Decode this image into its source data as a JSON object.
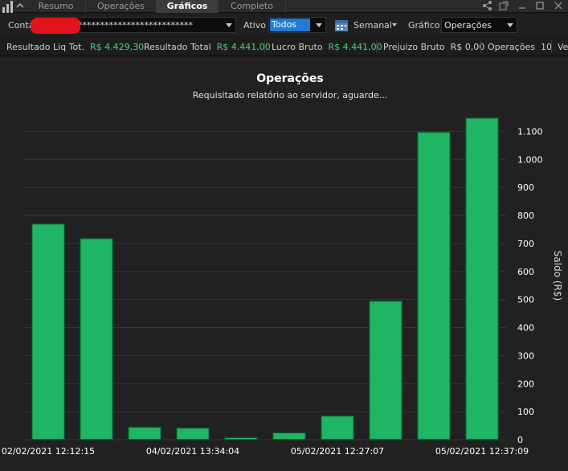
{
  "tabs": [
    {
      "label": "Resumo",
      "active": false
    },
    {
      "label": "Operações",
      "active": false
    },
    {
      "label": "Gráficos",
      "active": true
    },
    {
      "label": "Completo",
      "active": false
    }
  ],
  "icons": {
    "app": "bar-chart-icon",
    "collapse": "chevron-up-icon",
    "share": "share-icon",
    "popout": "popout-icon",
    "minimize": "minimize-icon",
    "maximize": "maximize-icon",
    "close": "close-icon",
    "calendar": "calendar-icon"
  },
  "toolbar": {
    "conta_label": "Conta",
    "conta_value": "************************************",
    "ativo_label": "Ativo",
    "ativo_value": "Todos",
    "period_value": "Semanal",
    "grafico_label": "Gráfico",
    "grafico_value": "Operações"
  },
  "stats": [
    {
      "label": "Resultado Liq Tot.",
      "value": "R$ 4.429,30",
      "positive": true
    },
    {
      "label": "Resultado Total",
      "value": "R$ 4.441,00",
      "positive": true
    },
    {
      "label": "Lucro Bruto",
      "value": "R$ 4.441,00",
      "positive": true
    },
    {
      "label": "Prejuizo Bruto",
      "value": "R$ 0,00",
      "positive": false
    },
    {
      "label": "Operações",
      "value": "10",
      "positive": false
    },
    {
      "label": "Ve",
      "value": "",
      "positive": false
    }
  ],
  "colors": {
    "bar_fill": "#1fb564",
    "bar_stroke": "#0e4a28",
    "positive_value": "#4cd07a",
    "active_combo": "#1e7bd6",
    "redaction": "#e0141a"
  },
  "chart_data": {
    "type": "bar",
    "title": "Operações",
    "subtitle": "Requisitado relatório ao servidor, aguarde...",
    "ylabel": "Saldo (R$)",
    "xlabel": "",
    "ylim": [
      0,
      1150
    ],
    "yticks": [
      0,
      100,
      200,
      300,
      400,
      500,
      600,
      700,
      800,
      900,
      1000,
      1100
    ],
    "ytick_labels": [
      "0",
      "100",
      "200",
      "300",
      "400",
      "500",
      "600",
      "700",
      "800",
      "900",
      "1.000",
      "1.100"
    ],
    "values": [
      770,
      718,
      45,
      42,
      8,
      25,
      85,
      495,
      1098,
      1148
    ],
    "x_tick_labels": [
      {
        "bar_index": 0,
        "label": "02/02/2021 12:12:15"
      },
      {
        "bar_index": 3,
        "label": "04/02/2021 13:34:04"
      },
      {
        "bar_index": 6,
        "label": "05/02/2021 12:27:07"
      },
      {
        "bar_index": 9,
        "label": "05/02/2021 12:37:09"
      }
    ],
    "grid": true,
    "y_axis_position": "right"
  }
}
